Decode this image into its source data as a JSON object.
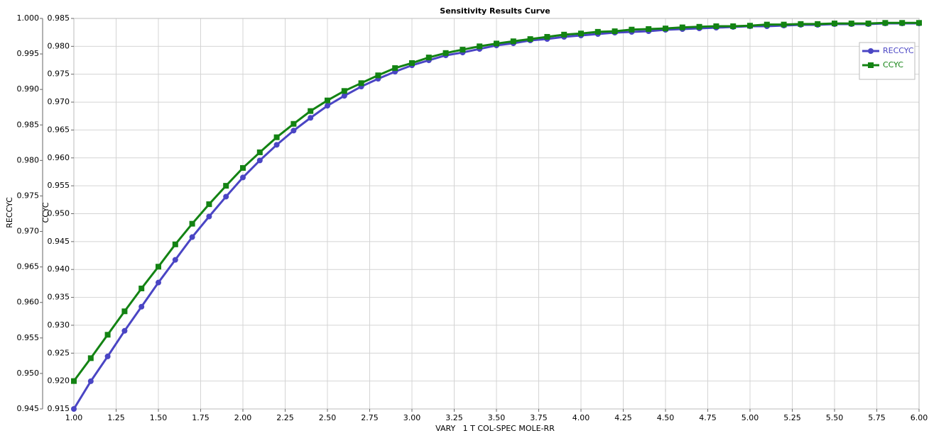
{
  "chart_data": {
    "type": "line",
    "title": "Sensitivity Results Curve",
    "x_label": "VARY   1 T COL-SPEC MOLE-RR",
    "y_label": "RECCYC",
    "y2_label": "CCYC",
    "x": [
      1.0,
      1.1,
      1.2,
      1.3,
      1.4,
      1.5,
      1.6,
      1.7,
      1.8,
      1.9,
      2.0,
      2.1,
      2.2,
      2.3,
      2.4,
      2.5,
      2.6,
      2.7,
      2.8,
      2.9,
      3.0,
      3.1,
      3.2,
      3.3,
      3.4,
      3.5,
      3.6,
      3.7,
      3.8,
      3.9,
      4.0,
      4.1,
      4.2,
      4.3,
      4.4,
      4.5,
      4.6,
      4.7,
      4.8,
      4.9,
      5.0,
      5.1,
      5.2,
      5.3,
      5.4,
      5.5,
      5.6,
      5.7,
      5.8,
      5.9,
      6.0
    ],
    "series": [
      {
        "name": "RECCYC",
        "color": "#4a45c4",
        "marker": "circle",
        "values": [
          0.945,
          0.9489,
          0.9524,
          0.956,
          0.9594,
          0.9628,
          0.966,
          0.9692,
          0.9721,
          0.9749,
          0.9776,
          0.98,
          0.9822,
          0.9842,
          0.986,
          0.9877,
          0.9891,
          0.9904,
          0.9915,
          0.9925,
          0.9934,
          0.9941,
          0.9948,
          0.9952,
          0.9957,
          0.9962,
          0.9965,
          0.9969,
          0.9971,
          0.9974,
          0.9976,
          0.9978,
          0.998,
          0.9981,
          0.9982,
          0.9984,
          0.9985,
          0.9986,
          0.9987,
          0.9988,
          0.9989,
          0.9989,
          0.999,
          0.9991,
          0.9991,
          0.9992,
          0.9992,
          0.9992,
          0.9993,
          0.9993,
          0.9993
        ]
      },
      {
        "name": "CCYC",
        "color": "#138313",
        "marker": "square",
        "axis": "y2",
        "values": [
          0.92,
          0.9241,
          0.9283,
          0.9325,
          0.9366,
          0.9405,
          0.9445,
          0.9482,
          0.9517,
          0.955,
          0.9582,
          0.961,
          0.9637,
          0.9661,
          0.9684,
          0.9703,
          0.972,
          0.9734,
          0.9748,
          0.9761,
          0.977,
          0.978,
          0.9788,
          0.9794,
          0.98,
          0.9805,
          0.9809,
          0.9813,
          0.9817,
          0.9821,
          0.9823,
          0.9826,
          0.9827,
          0.983,
          0.9831,
          0.9832,
          0.9834,
          0.9835,
          0.9836,
          0.9836,
          0.9837,
          0.9839,
          0.9839,
          0.984,
          0.984,
          0.9841,
          0.9841,
          0.9841,
          0.9842,
          0.9842,
          0.9842
        ]
      }
    ],
    "xlim": [
      1,
      6
    ],
    "xticks": [
      {
        "value": 1,
        "label": "1.00"
      },
      1.25,
      {
        "value": 1.5,
        "label": "1.50"
      },
      1.75,
      {
        "value": 2,
        "label": "2.00"
      },
      2.25,
      {
        "value": 2.5,
        "label": "2.50"
      },
      2.75,
      {
        "value": 3,
        "label": "3.00"
      },
      3.25,
      {
        "value": 3.5,
        "label": "3.50"
      },
      3.75,
      {
        "value": 4,
        "label": "4.00"
      },
      4.25,
      {
        "value": 4.5,
        "label": "4.50"
      },
      4.75,
      {
        "value": 5,
        "label": "5.00"
      },
      5.25,
      {
        "value": 5.5,
        "label": "5.50"
      },
      5.75,
      {
        "value": 6,
        "label": "6.00"
      }
    ],
    "ylim": [
      0.945,
      1
    ],
    "yticks": [
      0.945,
      {
        "value": 0.95,
        "label": "0.950"
      },
      0.955,
      {
        "value": 0.96,
        "label": "0.960"
      },
      0.965,
      {
        "value": 0.97,
        "label": "0.970"
      },
      0.975,
      {
        "value": 0.98,
        "label": "0.980"
      },
      0.985,
      {
        "value": 0.99,
        "label": "0.990"
      },
      0.995,
      {
        "value": 1,
        "label": "1.000"
      }
    ],
    "y2lim": [
      0.915,
      0.985
    ],
    "y2ticks": [
      0.915,
      {
        "value": 0.92,
        "label": "0.920"
      },
      0.925,
      {
        "value": 0.93,
        "label": "0.930"
      },
      0.935,
      {
        "value": 0.94,
        "label": "0.940"
      },
      0.945,
      {
        "value": 0.95,
        "label": "0.950"
      },
      0.955,
      {
        "value": 0.96,
        "label": "0.960"
      },
      0.965,
      {
        "value": 0.97,
        "label": "0.970"
      },
      0.975,
      {
        "value": 0.98,
        "label": "0.980"
      },
      0.985
    ],
    "grid": true,
    "legend": "upper-right"
  }
}
